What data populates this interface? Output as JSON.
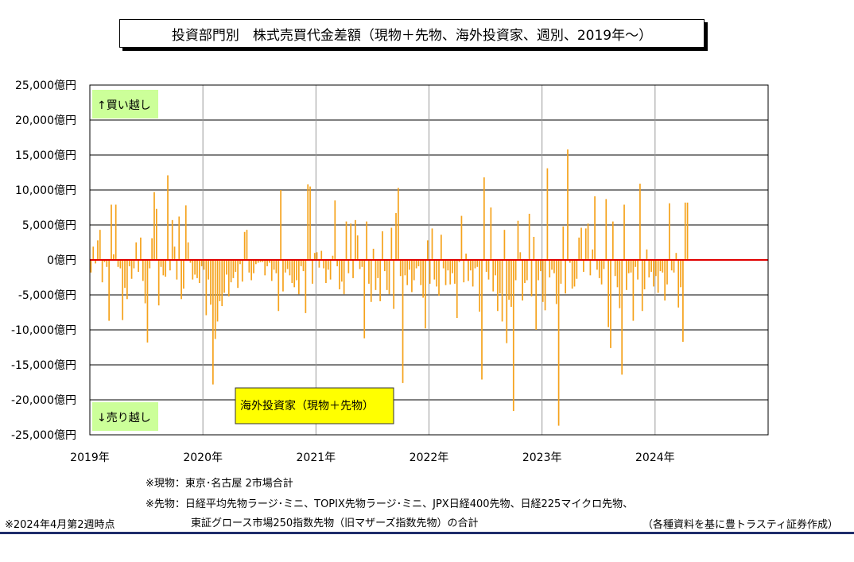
{
  "title": "投資部門別　株式売買代金差額（現物＋先物、海外投資家、週別、2019年～）",
  "notes": {
    "genbutsu": "※現物：東京･名古屋 2市場合計",
    "sakimono_1": "※先物：日経平均先物ラージ･ミニ、TOPIX先物ラージ･ミニ、JPX日経400先物、日経225マイクロ先物、",
    "sakimono_2": "東証グロース市場250指数先物（旧マザーズ指数先物）の合計",
    "as_of": "※2024年4月第2週時点",
    "source": "（各種資料を基に豊トラスティ証券作成）"
  },
  "chart_data": {
    "type": "bar",
    "title": "投資部門別　株式売買代金差額（現物＋先物、海外投資家、週別、2019年～）",
    "xlabel": "",
    "ylabel": "",
    "ylim": [
      -25000,
      25000
    ],
    "y_ticks": [
      25000,
      20000,
      15000,
      10000,
      5000,
      0,
      -5000,
      -10000,
      -15000,
      -20000,
      -25000
    ],
    "y_tick_labels": [
      "25,000億円",
      "20,000億円",
      "15,000億円",
      "10,000億円",
      "5,000億円",
      "0億円",
      "-5,000億円",
      "-10,000億円",
      "-15,000億円",
      "-20,000億円",
      "-25,000億円"
    ],
    "x_tick_labels": [
      "2019年",
      "2020年",
      "2021年",
      "2022年",
      "2023年",
      "2024年"
    ],
    "xlim_years": [
      2019,
      2025
    ],
    "grid": true,
    "buy_label": "↑買い越し",
    "sell_label": "↓売り越し",
    "legend": "海外投資家（現物＋先物）",
    "bar_color": "#f5a21b",
    "zero_line_color": "#e00000",
    "buy_box_color": "#ccff99",
    "legend_box_color": "#ffff00",
    "series": [
      {
        "name": "海外投資家（現物＋先物）",
        "values": [
          -1800,
          1900,
          -500,
          2800,
          4300,
          -3200,
          -300,
          -1000,
          -8700,
          7900,
          800,
          7900,
          -1000,
          -1200,
          -8600,
          -4000,
          -5600,
          -900,
          -2700,
          -1200,
          2500,
          -1700,
          3200,
          -3000,
          -6200,
          -11800,
          -1200,
          3100,
          9700,
          7300,
          -6500,
          -1000,
          -2200,
          -2400,
          12100,
          -1500,
          5700,
          1900,
          -2800,
          6200,
          -5600,
          -4100,
          7800,
          2500,
          -400,
          -2800,
          -2100,
          -2600,
          -3300,
          -900,
          -1400,
          -7900,
          -2800,
          -6400,
          -17800,
          -11300,
          -8800,
          -5900,
          -6600,
          -4700,
          -2100,
          -5200,
          -3200,
          -2600,
          -1700,
          -4000,
          -600,
          -3100,
          4000,
          4300,
          -1800,
          -2900,
          -1900,
          -600,
          -400,
          -300,
          -300,
          -2200,
          -900,
          -400,
          -3000,
          -1400,
          -1900,
          -7300,
          10000,
          -4500,
          -1800,
          -1300,
          -2200,
          -3300,
          -3900,
          -2900,
          -4900,
          -900,
          -1600,
          -7600,
          10800,
          10500,
          -3400,
          1000,
          1100,
          -1100,
          1300,
          -1200,
          -3300,
          -1400,
          -2800,
          600,
          8500,
          -900,
          -4200,
          -3100,
          -4900,
          5500,
          -1900,
          5200,
          -2600,
          5700,
          3500,
          -1300,
          -1000,
          -11200,
          5500,
          -3400,
          -6000,
          1600,
          -4300,
          -2600,
          -5900,
          4100,
          -1600,
          -4300,
          -4900,
          4600,
          -7000,
          6700,
          10300,
          -2300,
          -17600,
          -2200,
          -3600,
          -1400,
          -4600,
          -2900,
          -1200,
          -900,
          -3600,
          -5400,
          -9800,
          2800,
          -3400,
          4500,
          -2800,
          -3800,
          -5100,
          3600,
          -1200,
          -3600,
          -1500,
          -3500,
          -1900,
          -3400,
          -8300,
          -300,
          6300,
          -3200,
          900,
          -3000,
          -1500,
          -3800,
          -1200,
          -1000,
          -7400,
          -17100,
          11800,
          -1700,
          -2800,
          7500,
          -4500,
          -2200,
          -7300,
          -4800,
          -8800,
          4300,
          -11900,
          -5700,
          -6700,
          -21600,
          -2900,
          5600,
          1100,
          -5800,
          -3300,
          -2900,
          6600,
          -5200,
          3300,
          -10000,
          -2900,
          -1600,
          -6000,
          -7200,
          13100,
          -2500,
          -1400,
          -1900,
          -6300,
          -23700,
          -3400,
          4800,
          -4800,
          15800,
          -400,
          -4100,
          -3800,
          -2700,
          3200,
          4600,
          -1700,
          4500,
          5200,
          -2200,
          1500,
          9100,
          -1400,
          -2600,
          -3500,
          -1300,
          8700,
          -9600,
          -12600,
          5500,
          -2300,
          -3900,
          -6900,
          -16400,
          7900,
          -4300,
          -1900,
          -1800,
          -8700,
          -1000,
          -2800,
          10900,
          -7300,
          -4200,
          1500,
          -2500,
          -1700,
          -3800,
          -2300,
          -4700,
          -1600,
          -1800,
          -5800,
          -3500,
          8100,
          -1500,
          -1800,
          1000,
          -6800,
          -3900,
          -11700,
          8200,
          8200
        ]
      }
    ]
  }
}
